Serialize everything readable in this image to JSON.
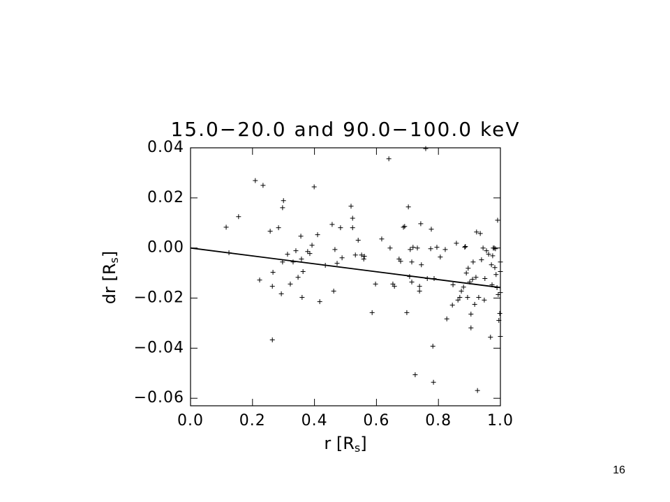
{
  "chart_data": {
    "type": "scatter",
    "title": "15.0−20.0 and 90.0−100.0 keV",
    "xlabel": [
      "r [R",
      "s",
      "]"
    ],
    "ylabel": [
      "dr [R",
      "s",
      "]"
    ],
    "xlim": [
      0,
      1
    ],
    "ylim": [
      -0.063,
      0.04
    ],
    "xticks": [
      {
        "value": 0,
        "label": "0.0"
      },
      {
        "value": 0.2,
        "label": "0.2"
      },
      {
        "value": 0.4,
        "label": "0.4"
      },
      {
        "value": 0.6,
        "label": "0.6"
      },
      {
        "value": 0.8,
        "label": "0.8"
      },
      {
        "value": 1,
        "label": "1.0"
      }
    ],
    "yticks": [
      {
        "value": -0.06,
        "label": "−0.06"
      },
      {
        "value": -0.04,
        "label": "−0.04"
      },
      {
        "value": -0.02,
        "label": "−0.02"
      },
      {
        "value": 0,
        "label": "0.00"
      },
      {
        "value": 0.02,
        "label": "0.02"
      },
      {
        "value": 0.04,
        "label": "0.04"
      }
    ],
    "grid": false,
    "series": [
      {
        "mode": "points",
        "marker": "+",
        "color": "#000000",
        "x": [
          0.115,
          0.124,
          0.155,
          0.209,
          0.234,
          0.223,
          0.257,
          0.264,
          0.266,
          0.264,
          0.284,
          0.293,
          0.297,
          0.3,
          0.297,
          0.313,
          0.322,
          0.331,
          0.34,
          0.347,
          0.356,
          0.358,
          0.36,
          0.363,
          0.378,
          0.385,
          0.392,
          0.399,
          0.41,
          0.417,
          0.435,
          0.457,
          0.462,
          0.466,
          0.473,
          0.484,
          0.489,
          0.518,
          0.523,
          0.523,
          0.532,
          0.541,
          0.552,
          0.559,
          0.561,
          0.586,
          0.597,
          0.617,
          0.64,
          0.644,
          0.653,
          0.658,
          0.673,
          0.678,
          0.687,
          0.691,
          0.698,
          0.703,
          0.707,
          0.709,
          0.714,
          0.714,
          0.718,
          0.725,
          0.732,
          0.739,
          0.739,
          0.743,
          0.745,
          0.759,
          0.764,
          0.775,
          0.777,
          0.782,
          0.784,
          0.786,
          0.795,
          0.806,
          0.822,
          0.827,
          0.845,
          0.847,
          0.858,
          0.863,
          0.869,
          0.874,
          0.881,
          0.885,
          0.887,
          0.89,
          0.894,
          0.896,
          0.901,
          0.905,
          0.905,
          0.91,
          0.912,
          0.917,
          0.921,
          0.923,
          0.926,
          0.93,
          0.935,
          0.939,
          0.944,
          0.948,
          0.95,
          0.955,
          0.962,
          0.968,
          0.971,
          0.973,
          0.975,
          0.977,
          0.98,
          0.982,
          0.984,
          0.986,
          0.989,
          0.991,
          0.993,
          0.995,
          0.998,
          1,
          1,
          1,
          1
        ],
        "values": [
          0.0083,
          -0.0019,
          0.0125,
          0.0269,
          0.025,
          -0.0128,
          0.0067,
          -0.0367,
          -0.0097,
          -0.0153,
          0.0081,
          -0.0183,
          0.0161,
          0.0189,
          -0.0056,
          -0.0025,
          -0.0144,
          -0.0056,
          -0.0011,
          -0.0117,
          0.0047,
          -0.0044,
          -0.0197,
          -0.0094,
          -0.0014,
          -0.0022,
          0.0011,
          0.0244,
          0.0053,
          -0.0214,
          -0.0069,
          0.0094,
          -0.0172,
          -0.0006,
          -0.0061,
          0.0081,
          -0.0039,
          0.0167,
          0.0119,
          0.0081,
          -0.0028,
          0.0031,
          -0.0028,
          -0.0044,
          -0.0033,
          -0.0258,
          -0.0144,
          0.0036,
          0.0356,
          0,
          -0.0144,
          -0.0153,
          -0.0044,
          -0.0053,
          0.0083,
          0.0086,
          -0.0258,
          0.0164,
          -0.0114,
          -0.0006,
          -0.0056,
          -0.0136,
          0.0003,
          -0.0506,
          0,
          -0.0172,
          -0.0153,
          0.0097,
          -0.0067,
          0.0397,
          -0.0122,
          -0.0003,
          0.0075,
          -0.0392,
          -0.0536,
          -0.0122,
          0.0003,
          -0.0036,
          -0.0006,
          -0.0283,
          -0.0228,
          -0.0147,
          0.0019,
          -0.0208,
          -0.0197,
          -0.0172,
          -0.0156,
          0.0003,
          0.0006,
          -0.01,
          -0.0197,
          -0.0081,
          -0.0136,
          -0.0264,
          -0.0319,
          -0.0125,
          -0.0056,
          -0.0225,
          -0.0117,
          0.0064,
          -0.0569,
          -0.0197,
          0.0058,
          -0.0047,
          0,
          -0.0208,
          -0.0122,
          -0.0011,
          -0.0025,
          -0.0356,
          -0.0067,
          -0.0147,
          -0.0031,
          0,
          0,
          -0.0078,
          -0.0003,
          -0.0106,
          -0.0158,
          0.0111,
          -0.0186,
          -0.0289,
          -0.0261,
          -0.0056,
          -0.0178,
          -0.0353,
          -0.0094
        ]
      },
      {
        "mode": "line",
        "color": "#000000",
        "x": [
          0,
          1
        ],
        "values": [
          0,
          -0.0158
        ]
      }
    ]
  },
  "page_number": "16"
}
